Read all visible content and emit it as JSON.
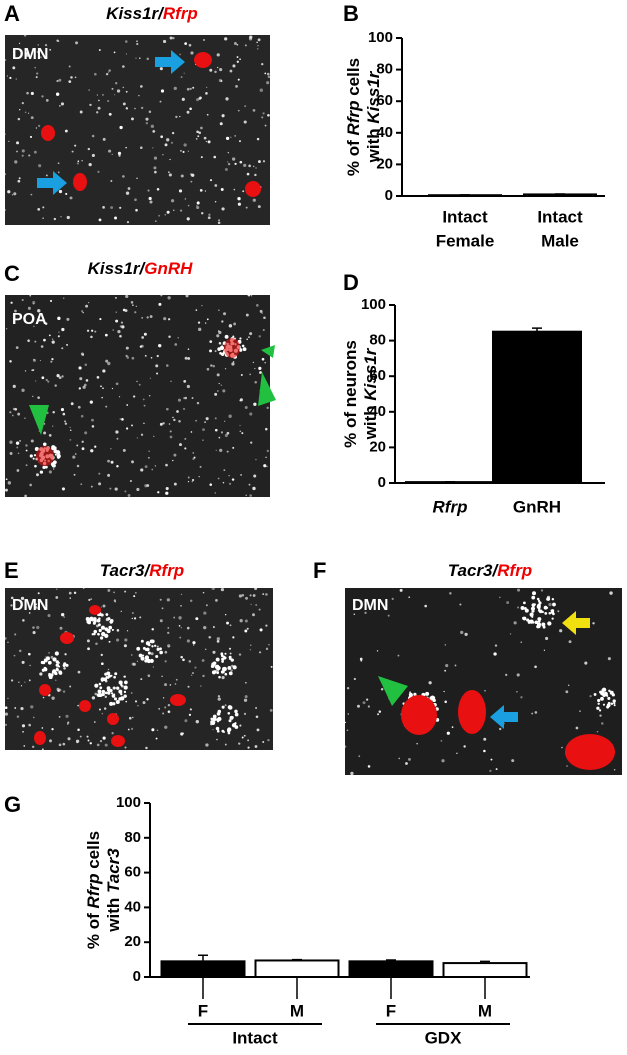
{
  "panels": [
    {
      "letter": "A",
      "title": [
        "Kiss1r/",
        "Rfrp"
      ],
      "region": "DMN"
    },
    {
      "letter": "B"
    },
    {
      "letter": "C",
      "title": [
        "Kiss1r/",
        "GnRH"
      ],
      "region": "POA"
    },
    {
      "letter": "D"
    },
    {
      "letter": "E",
      "title": [
        "Tacr3/",
        "Rfrp"
      ],
      "region": "DMN"
    },
    {
      "letter": "F",
      "title": [
        "Tacr3/",
        "Rfrp"
      ],
      "region": "DMN"
    },
    {
      "letter": "G"
    }
  ],
  "chart_data": [
    {
      "type": "bar",
      "ylabel": [
        [
          "% of ",
          "Rfrp",
          " cells"
        ],
        [
          "with ",
          "Kiss1r"
        ]
      ],
      "categories": [
        [
          "Intact",
          "Female"
        ],
        [
          "Intact",
          "Male"
        ]
      ],
      "series": [
        {
          "values": [
            0.5,
            1
          ],
          "errors": [
            0.2,
            0.3
          ],
          "color": [
            "#000000",
            "#000000"
          ]
        }
      ],
      "ylim": [
        0,
        100
      ],
      "yticks": [
        0,
        20,
        40,
        60,
        80,
        100
      ]
    },
    {
      "type": "bar",
      "ylabel": [
        [
          "% of neurons"
        ],
        [
          "with ",
          "Kiss1r"
        ]
      ],
      "categories": [
        [
          "Rfrp"
        ],
        [
          "GnRH"
        ]
      ],
      "category_italic": [
        true,
        false
      ],
      "series": [
        {
          "values": [
            0.5,
            85
          ],
          "errors": [
            0.2,
            2
          ],
          "color": [
            "#000000",
            "#000000"
          ]
        }
      ],
      "ylim": [
        0,
        100
      ],
      "yticks": [
        0,
        20,
        40,
        60,
        80,
        100
      ]
    },
    {
      "type": "bar",
      "ylabel": [
        [
          "% of ",
          "Rfrp",
          " cells"
        ],
        [
          "with ",
          "Tacr3"
        ]
      ],
      "categories": [
        [
          "F"
        ],
        [
          "M"
        ],
        [
          "F"
        ],
        [
          "M"
        ]
      ],
      "groups": [
        "Intact",
        "GDX"
      ],
      "series": [
        {
          "values": [
            9,
            9.5,
            9,
            8
          ],
          "errors": [
            3.5,
            0.5,
            0.8,
            1
          ],
          "color": [
            "#000000",
            "#ffffff",
            "#000000",
            "#ffffff"
          ]
        }
      ],
      "ylim": [
        0,
        100
      ],
      "yticks": [
        0,
        20,
        40,
        60,
        80,
        100
      ]
    }
  ]
}
